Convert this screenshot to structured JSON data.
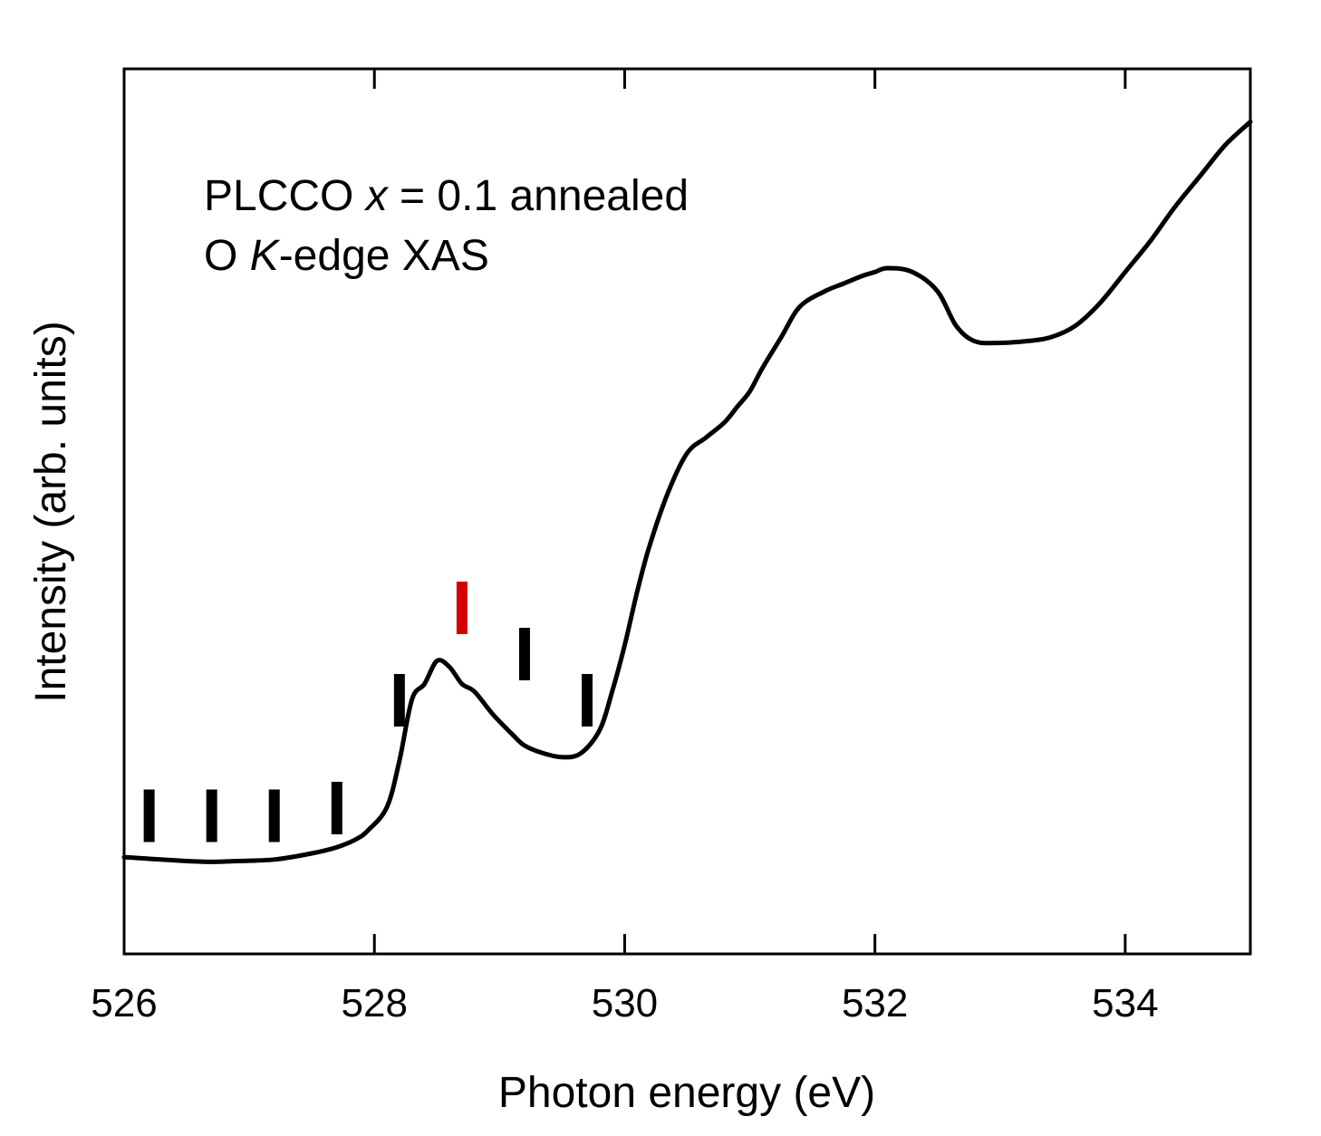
{
  "chart_data": {
    "type": "line",
    "title": "",
    "annotation": {
      "line1": {
        "prefix": "PLCCO ",
        "var": "x",
        "suffix": " = 0.1 annealed"
      },
      "line2": {
        "prefix": "O ",
        "var": "K",
        "suffix": "-edge XAS"
      }
    },
    "xlabel": "Photon energy (eV)",
    "ylabel": "Intensity (arb. units)",
    "xlim": [
      526,
      535
    ],
    "ylim": [
      0,
      1
    ],
    "xticks": [
      526,
      528,
      530,
      532,
      534
    ],
    "xtick_labels": [
      "526",
      "528",
      "530",
      "532",
      "534"
    ],
    "grid": false,
    "series": [
      {
        "name": "O K-edge XAS",
        "color": "#000000",
        "x": [
          526.0,
          526.2,
          526.5,
          526.7,
          526.9,
          527.2,
          527.5,
          527.7,
          527.85,
          527.95,
          528.1,
          528.2,
          528.3,
          528.4,
          528.5,
          528.6,
          528.7,
          528.8,
          528.95,
          529.1,
          529.2,
          529.35,
          529.5,
          529.65,
          529.8,
          529.9,
          530.0,
          530.1,
          530.2,
          530.35,
          530.5,
          530.65,
          530.8,
          530.9,
          531.0,
          531.1,
          531.25,
          531.4,
          531.6,
          531.75,
          531.9,
          532.0,
          532.1,
          532.3,
          532.5,
          532.65,
          532.8,
          533.0,
          533.2,
          533.4,
          533.6,
          533.8,
          534.0,
          534.2,
          534.4,
          534.6,
          534.8,
          535.0
        ],
        "y": [
          0.075,
          0.073,
          0.07,
          0.069,
          0.07,
          0.072,
          0.08,
          0.088,
          0.098,
          0.11,
          0.14,
          0.2,
          0.28,
          0.3,
          0.33,
          0.322,
          0.3,
          0.29,
          0.26,
          0.235,
          0.22,
          0.21,
          0.205,
          0.21,
          0.24,
          0.29,
          0.35,
          0.42,
          0.48,
          0.55,
          0.6,
          0.62,
          0.64,
          0.66,
          0.68,
          0.71,
          0.75,
          0.79,
          0.81,
          0.82,
          0.83,
          0.835,
          0.84,
          0.835,
          0.81,
          0.765,
          0.745,
          0.743,
          0.745,
          0.75,
          0.765,
          0.795,
          0.835,
          0.875,
          0.92,
          0.96,
          1.0,
          1.03
        ],
        "_yfix": "placeholder"
      }
    ],
    "markers": [
      {
        "x": 526.2,
        "y": 0.13,
        "color": "#000000"
      },
      {
        "x": 526.7,
        "y": 0.13,
        "color": "#000000"
      },
      {
        "x": 527.2,
        "y": 0.13,
        "color": "#000000"
      },
      {
        "x": 527.7,
        "y": 0.14,
        "color": "#000000"
      },
      {
        "x": 528.2,
        "y": 0.28,
        "color": "#000000"
      },
      {
        "x": 528.7,
        "y": 0.4,
        "color": "#d40000"
      },
      {
        "x": 529.2,
        "y": 0.34,
        "color": "#000000"
      },
      {
        "x": 529.7,
        "y": 0.28,
        "color": "#000000"
      }
    ]
  }
}
